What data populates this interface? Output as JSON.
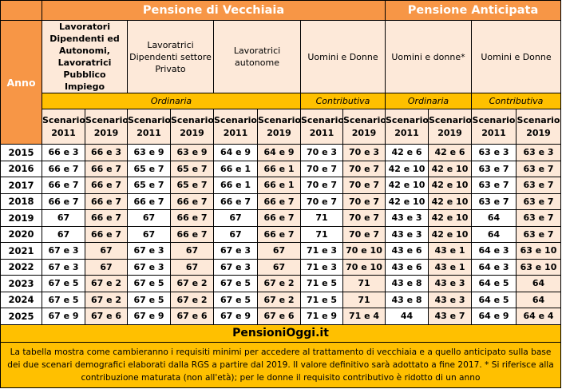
{
  "header": {
    "title_vecchiaia": "Pensione di Vecchiaia",
    "title_anticipata": "Pensione Anticipata",
    "anno": "Anno",
    "groups": [
      "Lavoratori Dipendenti ed Autonomi, Lavoratrici Pubblico Impiego",
      "Lavoratrici Dipendenti settore Privato",
      "Lavoratrici autonome",
      "Uomini e Donne",
      "Uomini e donne*",
      "Uomini e Donne"
    ],
    "regimes": [
      "Ordinaria",
      "Contributiva",
      "Ordinaria",
      "Contributiva"
    ],
    "scenario_2011": "Scenario 2011",
    "scenario_2019": "Scenario 2019"
  },
  "rows": [
    {
      "year": "2015",
      "v": [
        "66 e 3",
        "66 e 3",
        "63 e 9",
        "63 e 9",
        "64 e 9",
        "64 e 9",
        "70 e 3",
        "70 e 3",
        "42 e 6",
        "42 e 6",
        "63 e 3",
        "63 e 3"
      ]
    },
    {
      "year": "2016",
      "v": [
        "66 e 7",
        "66 e 7",
        "65 e 7",
        "65 e 7",
        "66 e 1",
        "66 e 1",
        "70 e 7",
        "70 e 7",
        "42 e 10",
        "42 e 10",
        "63 e 7",
        "63 e 7"
      ]
    },
    {
      "year": "2017",
      "v": [
        "66 e 7",
        "66 e 7",
        "65 e 7",
        "65 e 7",
        "66 e 1",
        "66 e 1",
        "70 e 7",
        "70 e 7",
        "42 e 10",
        "42 e 10",
        "63 e 7",
        "63 e 7"
      ]
    },
    {
      "year": "2018",
      "v": [
        "66 e 7",
        "66 e 7",
        "66 e 7",
        "66 e 7",
        "66 e 7",
        "66 e 7",
        "70 e 7",
        "70 e 7",
        "42 e 10",
        "42 e 10",
        "63 e 7",
        "63 e 7"
      ]
    },
    {
      "year": "2019",
      "v": [
        "67",
        "66 e 7",
        "67",
        "66 e 7",
        "67",
        "66 e 7",
        "71",
        "70 e 7",
        "43 e 3",
        "42 e 10",
        "64",
        "63 e 7"
      ]
    },
    {
      "year": "2020",
      "v": [
        "67",
        "66 e 7",
        "67",
        "66 e 7",
        "67",
        "66 e 7",
        "71",
        "70 e 7",
        "43 e 3",
        "42 e 10",
        "64",
        "63 e 7"
      ]
    },
    {
      "year": "2021",
      "v": [
        "67 e 3",
        "67",
        "67 e 3",
        "67",
        "67 e 3",
        "67",
        "71 e 3",
        "70 e 10",
        "43 e 6",
        "43 e 1",
        "64 e 3",
        "63 e 10"
      ]
    },
    {
      "year": "2022",
      "v": [
        "67 e 3",
        "67",
        "67 e 3",
        "67",
        "67 e 3",
        "67",
        "71 e 3",
        "70 e 10",
        "43 e 6",
        "43 e 1",
        "64 e 3",
        "63 e 10"
      ]
    },
    {
      "year": "2023",
      "v": [
        "67 e 5",
        "67 e 2",
        "67 e 5",
        "67 e 2",
        "67 e 5",
        "67 e 2",
        "71 e 5",
        "71",
        "43 e 8",
        "43 e 3",
        "64 e 5",
        "64"
      ]
    },
    {
      "year": "2024",
      "v": [
        "67 e 5",
        "67 e 2",
        "67 e 5",
        "67 e 2",
        "67 e 5",
        "67 e 2",
        "71 e 5",
        "71",
        "43 e 8",
        "43 e 3",
        "64 e 5",
        "64"
      ]
    },
    {
      "year": "2025",
      "v": [
        "67 e 9",
        "67 e 6",
        "67 e 9",
        "67 e 6",
        "67 e 9",
        "67 e 6",
        "71 e 9",
        "71 e 4",
        "44",
        "43 e 7",
        "64 e 9",
        "64 e 4"
      ]
    }
  ],
  "footer": {
    "brand": "PensioniOggi.it",
    "note": "La tabella mostra come cambieranno i requisiti minimi per accedere al trattamento di vecchiaia e a quello anticipato sulla base dei due scenari demografici elaborati dalla RGS a partire dal 2019. Il valore definitivo sarà adottato a fine 2017. * Si riferisce alla contribuzione maturata (non all'età); per le donne il requisito contributivo è ridotto di un anno"
  },
  "colors": {
    "orange": "#f79646",
    "peach": "#fde9d9",
    "yellow": "#ffc000"
  }
}
